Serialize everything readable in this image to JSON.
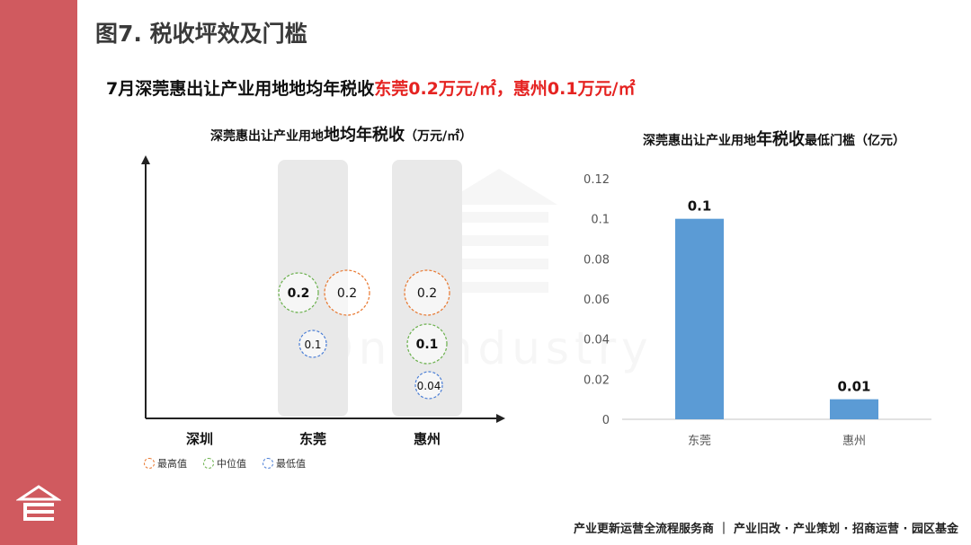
{
  "page_title": "图7. 税收坪效及门槛",
  "headline": {
    "prefix": "7月深莞惠出让产业用地地均年税收",
    "dongguan": "东莞0.2万元/㎡",
    "sep": "，",
    "huizhou": "惠州0.1万元/㎡"
  },
  "footer": "产业更新运营全流程服务商 ｜ 产业旧改 · 产业策划 · 招商运营 · 园区基金",
  "watermark_text": "OneIndustry",
  "colors": {
    "accent_bar": "#d05a5f",
    "highlight_text": "#e52321",
    "max": "#e8762d",
    "median": "#6ab04c",
    "min": "#4a7ed6",
    "bar": "#5b9bd5",
    "band": "#e9e9e9"
  },
  "chart_data": [
    {
      "type": "scatter",
      "title_small_1": "深莞惠出让产业用地",
      "title_big": "地均年税收",
      "title_small_2": "（万元/㎡）",
      "categories": [
        "深圳",
        "东莞",
        "惠州"
      ],
      "legend": [
        "最高值",
        "中位值",
        "最低值"
      ],
      "legend_placement": "bottom-left",
      "grid": false,
      "points": [
        {
          "city": "东莞",
          "stat": "中位值",
          "value": 0.2,
          "label": "0.2",
          "bold": true
        },
        {
          "city": "东莞",
          "stat": "最高值",
          "value": 0.2,
          "label": "0.2",
          "bold": false
        },
        {
          "city": "东莞",
          "stat": "最低值",
          "value": 0.1,
          "label": "0.1",
          "bold": false
        },
        {
          "city": "惠州",
          "stat": "最高值",
          "value": 0.2,
          "label": "0.2",
          "bold": false
        },
        {
          "city": "惠州",
          "stat": "中位值",
          "value": 0.1,
          "label": "0.1",
          "bold": true
        },
        {
          "city": "惠州",
          "stat": "最低值",
          "value": 0.04,
          "label": "0.04",
          "bold": false
        }
      ]
    },
    {
      "type": "bar",
      "title_small_1": "深莞惠出让产业用地",
      "title_big": "年税收",
      "title_small_2": "最低门槛（亿元）",
      "categories": [
        "东莞",
        "惠州"
      ],
      "values": [
        0.1,
        0.01
      ],
      "value_labels": [
        "0.1",
        "0.01"
      ],
      "yticks": [
        "0",
        "0.02",
        "0.04",
        "0.06",
        "0.08",
        "0.1",
        "0.12"
      ],
      "ylim": [
        0,
        0.12
      ],
      "grid": false
    }
  ]
}
